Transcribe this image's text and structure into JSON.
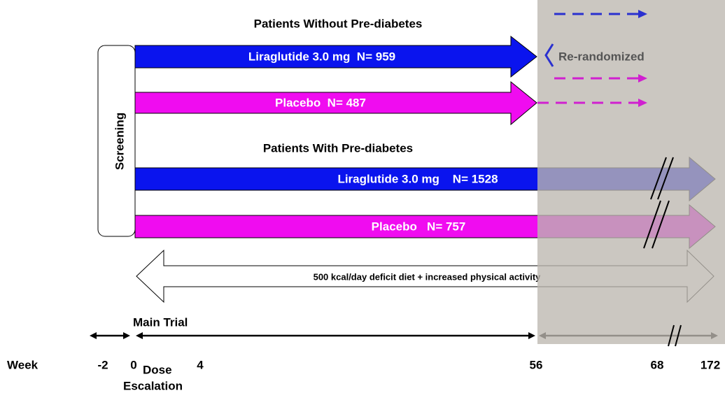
{
  "top_group": {
    "title": "Patients Without Pre-diabetes",
    "arms": [
      {
        "label": "Liraglutide 3.0 mg  N= 959"
      },
      {
        "label": "Placebo  N= 487"
      }
    ]
  },
  "rerandomized": "Re-randomized",
  "screening": "Screening",
  "bottom_group": {
    "title": "Patients With Pre-diabetes",
    "arms": [
      {
        "label": "Liraglutide 3.0 mg    N= 1528"
      },
      {
        "label": "Placebo   N= 757"
      }
    ]
  },
  "diet": "500 kcal/day deficit diet + increased physical activity",
  "main_trial": "Main Trial",
  "week_row": {
    "title": "Week",
    "ticks": [
      "-2",
      "0",
      "4",
      "56",
      "68",
      "172"
    ],
    "dose": "Dose",
    "escalation": "Escalation"
  }
}
